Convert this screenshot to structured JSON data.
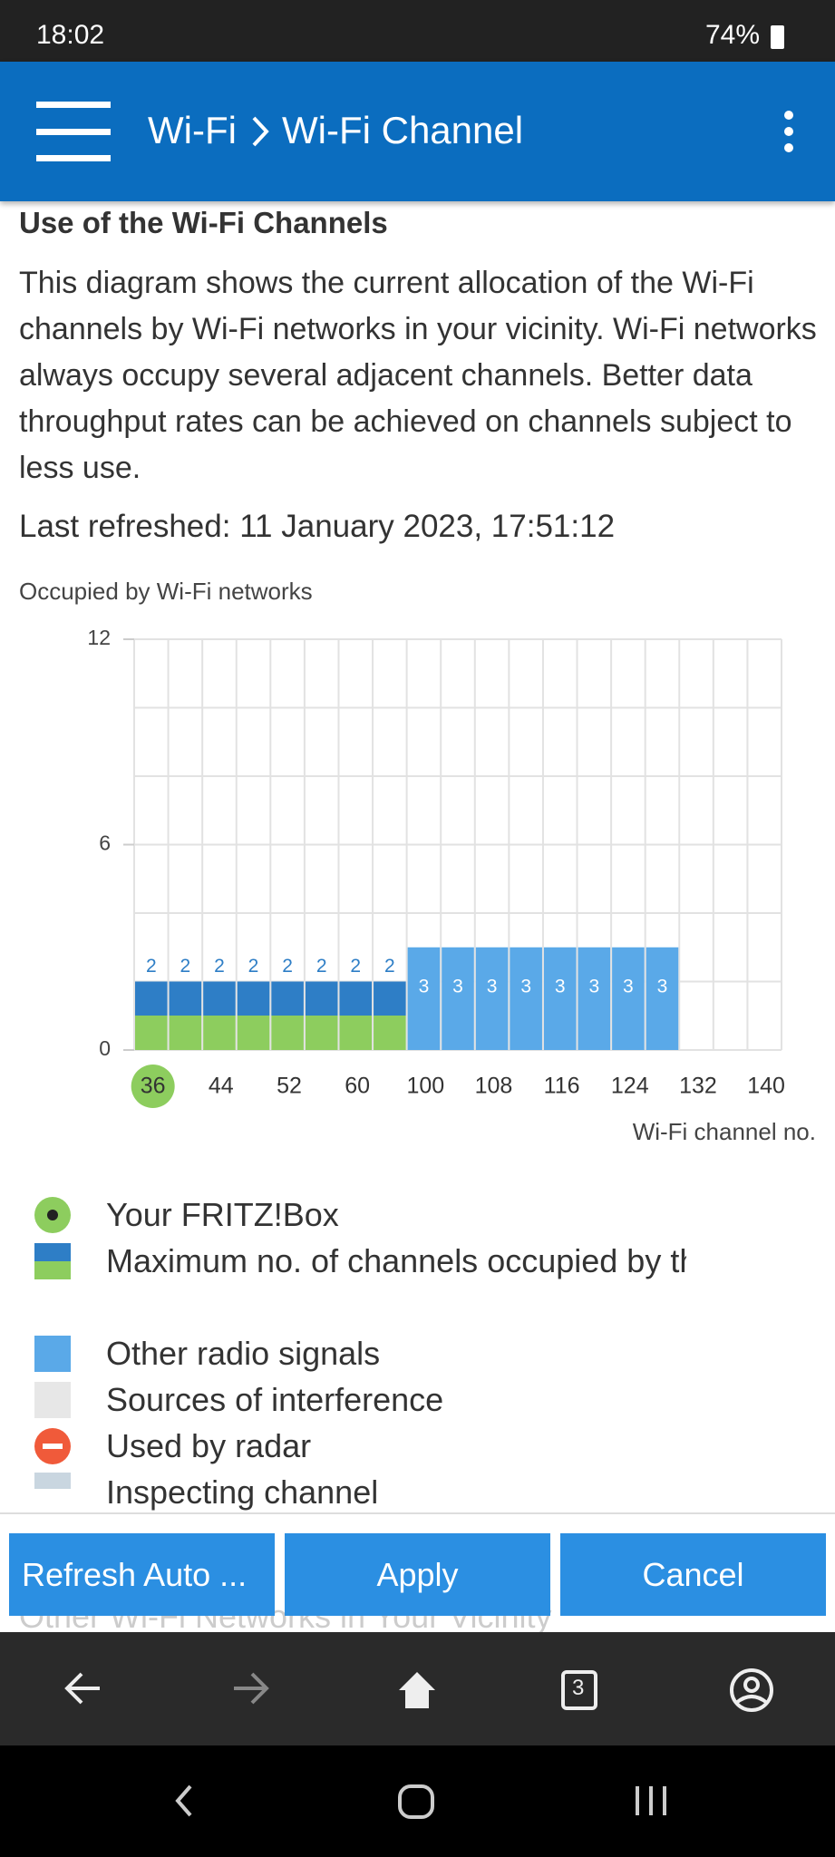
{
  "status_bar": {
    "time": "18:02",
    "battery": "74%"
  },
  "header": {
    "breadcrumb": [
      "Wi-Fi",
      "Wi-Fi Channel"
    ]
  },
  "section": {
    "heading": "Use of the Wi-Fi Channels",
    "description": "This diagram shows the current allocation of the Wi-Fi channels by Wi-Fi networks in your vicinity. Wi-Fi networks always occupy several adjacent channels. Better data throughput rates can be achieved on channels subject to less use.",
    "last_refreshed": "Last refreshed: 11 January 2023, 17:51:12"
  },
  "chart_data": {
    "type": "bar",
    "y_label": "Occupied by Wi-Fi networks",
    "x_label": "Wi-Fi channel no.",
    "categories": [
      "36",
      null,
      "44",
      null,
      "52",
      null,
      "60",
      null,
      "100",
      null,
      "108",
      null,
      "116",
      null,
      "124",
      null,
      "132",
      null,
      "140"
    ],
    "series": [
      {
        "name": "Maximum no. of channels occupied by the FRITZ!Box",
        "color": "#2e7ec6",
        "base_color": "#8dcd5e",
        "values": [
          2,
          2,
          2,
          2,
          2,
          2,
          2,
          2,
          null,
          null,
          null,
          null,
          null,
          null,
          null,
          null,
          null,
          null,
          null
        ]
      },
      {
        "name": "Other radio signals",
        "color": "#5aa9e8",
        "values": [
          null,
          null,
          null,
          null,
          null,
          null,
          null,
          null,
          3,
          3,
          3,
          3,
          3,
          3,
          3,
          3,
          null,
          null,
          null
        ]
      }
    ],
    "ylim": [
      0,
      12
    ],
    "yticks": [
      0,
      6,
      12
    ],
    "ygrid": [
      0,
      2,
      4,
      6,
      8,
      10,
      12
    ],
    "highlight": {
      "category": "36",
      "label": "Your FRITZ!Box",
      "color": "#8dcd5e"
    },
    "legend_extra": [
      "Sources of interference",
      "Used by radar",
      "Inspecting channel"
    ]
  },
  "buttons": [
    "Refresh Auto ...",
    "Apply",
    "Cancel"
  ],
  "next_heading": "Other Wi-Fi Networks in Your Vicinity",
  "browser_bar": {
    "tabs": "3"
  }
}
